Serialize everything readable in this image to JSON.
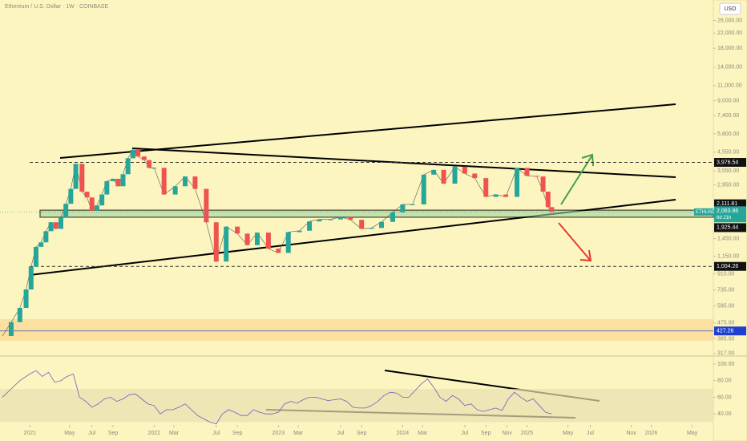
{
  "header": {
    "title": "Ethereum / U.S. Dollar · 1W · COINBASE",
    "currency": "USD"
  },
  "chart_data": {
    "type": "candle-close",
    "log_scale": true,
    "xlim": [
      2020.76,
      2026.5
    ],
    "ylim": [
      310,
      34100
    ],
    "xticks": [
      {
        "value": 2021.0,
        "label": "2021"
      },
      {
        "value": 2021.32,
        "label": "May"
      },
      {
        "value": 2021.5,
        "label": "Jul"
      },
      {
        "value": 2021.67,
        "label": "Sep"
      },
      {
        "value": 2022.0,
        "label": "2022"
      },
      {
        "value": 2022.16,
        "label": "Mar"
      },
      {
        "value": 2022.5,
        "label": "Jul"
      },
      {
        "value": 2022.67,
        "label": "Sep"
      },
      {
        "value": 2023.0,
        "label": "2023"
      },
      {
        "value": 2023.16,
        "label": "Mar"
      },
      {
        "value": 2023.5,
        "label": "Jul"
      },
      {
        "value": 2023.67,
        "label": "Sep"
      },
      {
        "value": 2024.0,
        "label": "2024"
      },
      {
        "value": 2024.16,
        "label": "Mar"
      },
      {
        "value": 2024.5,
        "label": "Jul"
      },
      {
        "value": 2024.67,
        "label": "Sep"
      },
      {
        "value": 2024.84,
        "label": "Nov"
      },
      {
        "value": 2025.0,
        "label": "2025"
      },
      {
        "value": 2025.33,
        "label": "May"
      },
      {
        "value": 2025.51,
        "label": "Jul"
      },
      {
        "value": 2025.84,
        "label": "Nov"
      },
      {
        "value": 2026.0,
        "label": "2026"
      },
      {
        "value": 2026.33,
        "label": "May"
      }
    ],
    "yticks": [
      {
        "value": 26000,
        "label": "26,000.00"
      },
      {
        "value": 22000,
        "label": "22,000.00"
      },
      {
        "value": 18000,
        "label": "18,000.00"
      },
      {
        "value": 14000,
        "label": "14,000.00"
      },
      {
        "value": 11000,
        "label": "11,000.00"
      },
      {
        "value": 9000,
        "label": "9,000.00"
      },
      {
        "value": 7400,
        "label": "7,400.00"
      },
      {
        "value": 5800,
        "label": "5,800.00"
      },
      {
        "value": 4550,
        "label": "4,550.00"
      },
      {
        "value": 3550,
        "label": "3,550.00"
      },
      {
        "value": 2950,
        "label": "2,950.00"
      },
      {
        "value": 1450,
        "label": "1,450.00"
      },
      {
        "value": 1150,
        "label": "1,150.00"
      },
      {
        "value": 910,
        "label": "910.00"
      },
      {
        "value": 735,
        "label": "735.00"
      },
      {
        "value": 595,
        "label": "595.00"
      },
      {
        "value": 475,
        "label": "475.00"
      },
      {
        "value": 385,
        "label": "385.00"
      },
      {
        "value": 317,
        "label": "317.00"
      }
    ],
    "series": [
      {
        "name": "ETHUSD",
        "up_color": "#26a69a",
        "down_color": "#ef5350",
        "x": [
          2020.78,
          2020.85,
          2020.92,
          2020.97,
          2021.01,
          2021.05,
          2021.09,
          2021.13,
          2021.17,
          2021.21,
          2021.25,
          2021.29,
          2021.33,
          2021.37,
          2021.42,
          2021.46,
          2021.5,
          2021.54,
          2021.58,
          2021.62,
          2021.67,
          2021.71,
          2021.75,
          2021.79,
          2021.83,
          2021.87,
          2021.92,
          2021.96,
          2022.0,
          2022.08,
          2022.17,
          2022.25,
          2022.33,
          2022.42,
          2022.5,
          2022.58,
          2022.67,
          2022.75,
          2022.83,
          2022.92,
          2023.0,
          2023.08,
          2023.17,
          2023.25,
          2023.33,
          2023.42,
          2023.5,
          2023.58,
          2023.67,
          2023.75,
          2023.83,
          2023.92,
          2024.0,
          2024.08,
          2024.17,
          2024.25,
          2024.33,
          2024.42,
          2024.5,
          2024.58,
          2024.67,
          2024.75,
          2024.83,
          2024.92,
          2025.0,
          2025.08,
          2025.13,
          2025.17,
          2025.2
        ],
        "values": [
          400,
          480,
          580,
          740,
          1000,
          1300,
          1380,
          1600,
          1800,
          1650,
          1920,
          2300,
          2800,
          3900,
          2700,
          2500,
          2100,
          2250,
          2600,
          3100,
          3200,
          2900,
          3400,
          4200,
          4700,
          4300,
          4100,
          3700,
          3700,
          2600,
          2900,
          3300,
          2800,
          1800,
          1070,
          1700,
          1550,
          1330,
          1570,
          1270,
          1200,
          1580,
          1610,
          1820,
          1870,
          1870,
          1930,
          1860,
          1650,
          1670,
          1810,
          2050,
          2280,
          2280,
          3380,
          3600,
          3000,
          3760,
          3430,
          3230,
          2520,
          2600,
          2520,
          3700,
          3330,
          3300,
          2700,
          2200,
          2063.86
        ]
      }
    ],
    "levels": [
      {
        "value": 3976.54,
        "label": "3,976.54"
      },
      {
        "value": 1004.26,
        "label": "1,004.26"
      }
    ],
    "zone": [
      {
        "value": 1925.44,
        "label": "1,925.44"
      },
      {
        "value": 2111.81,
        "label": "2,111.81"
      }
    ],
    "last_price": {
      "symbol": "ETHUSD",
      "value": 2063.86,
      "label": "2,063.86",
      "countdown": "6d 21h"
    },
    "volume_ma": {
      "value": 427.26,
      "label": "427.26"
    },
    "rsi": {
      "ylim": [
        28.6,
        108.6
      ],
      "color": "#7e57c2",
      "yticks": [
        {
          "value": 100,
          "label": "100.00"
        },
        {
          "value": 80,
          "label": "80.00"
        },
        {
          "value": 60,
          "label": "60.00"
        },
        {
          "value": 40,
          "label": "40.00"
        }
      ],
      "x": [
        2020.78,
        2020.85,
        2020.92,
        2021.0,
        2021.05,
        2021.1,
        2021.15,
        2021.2,
        2021.25,
        2021.3,
        2021.35,
        2021.4,
        2021.45,
        2021.5,
        2021.55,
        2021.6,
        2021.65,
        2021.7,
        2021.75,
        2021.8,
        2021.85,
        2021.9,
        2021.95,
        2022.0,
        2022.05,
        2022.1,
        2022.15,
        2022.2,
        2022.25,
        2022.3,
        2022.35,
        2022.4,
        2022.45,
        2022.5,
        2022.55,
        2022.6,
        2022.65,
        2022.7,
        2022.75,
        2022.8,
        2022.85,
        2022.9,
        2022.95,
        2023.0,
        2023.05,
        2023.1,
        2023.15,
        2023.2,
        2023.25,
        2023.3,
        2023.35,
        2023.4,
        2023.45,
        2023.5,
        2023.55,
        2023.6,
        2023.65,
        2023.7,
        2023.75,
        2023.8,
        2023.85,
        2023.9,
        2023.95,
        2024.0,
        2024.05,
        2024.1,
        2024.15,
        2024.2,
        2024.25,
        2024.3,
        2024.35,
        2024.4,
        2024.45,
        2024.5,
        2024.55,
        2024.6,
        2024.65,
        2024.7,
        2024.75,
        2024.8,
        2024.85,
        2024.9,
        2024.95,
        2025.0,
        2025.05,
        2025.1,
        2025.15,
        2025.2
      ],
      "values": [
        60,
        70,
        80,
        88,
        92,
        85,
        90,
        78,
        80,
        85,
        88,
        60,
        55,
        48,
        52,
        58,
        60,
        55,
        58,
        63,
        64,
        58,
        52,
        50,
        40,
        45,
        45,
        48,
        52,
        45,
        38,
        34,
        30,
        28,
        40,
        45,
        42,
        38,
        38,
        45,
        42,
        40,
        40,
        42,
        52,
        55,
        53,
        57,
        60,
        60,
        58,
        56,
        57,
        58,
        55,
        48,
        47,
        47,
        50,
        55,
        62,
        66,
        65,
        60,
        60,
        68,
        76,
        82,
        72,
        60,
        55,
        62,
        58,
        50,
        52,
        45,
        43,
        45,
        47,
        44,
        58,
        66,
        60,
        55,
        58,
        50,
        42,
        40
      ]
    }
  }
}
